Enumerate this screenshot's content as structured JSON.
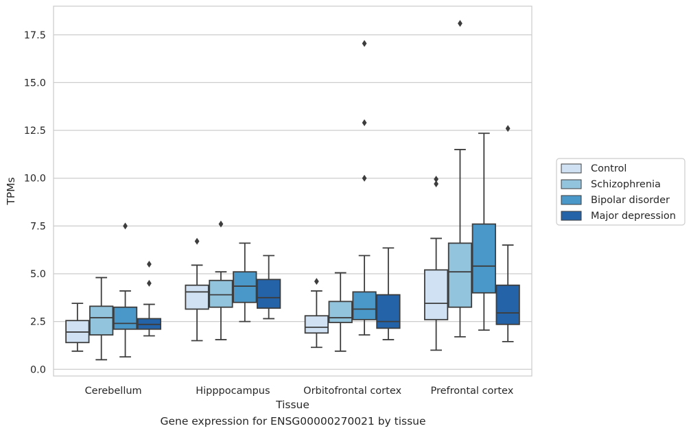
{
  "caption": "Gene expression for ENSG00000270021 by tissue",
  "chart_data": {
    "type": "boxplot",
    "title": "",
    "xlabel": "Tissue",
    "ylabel": "TPMs",
    "ylim": [
      -0.35,
      19.0
    ],
    "yticks": [
      0.0,
      2.5,
      5.0,
      7.5,
      10.0,
      12.5,
      15.0,
      17.5
    ],
    "ytick_labels": [
      "0.0",
      "2.5",
      "5.0",
      "7.5",
      "10.0",
      "12.5",
      "15.0",
      "17.5"
    ],
    "grid": "horizontal",
    "legend_position": "right",
    "categories": [
      "Cerebellum",
      "Hipppocampus",
      "Orbitofrontal cortex",
      "Prefrontal cortex"
    ],
    "series": [
      {
        "name": "Control",
        "color": "#cfe1f2",
        "boxes": [
          {
            "whislo": 0.95,
            "q1": 1.4,
            "med": 1.95,
            "q3": 2.55,
            "whishi": 3.45,
            "fliers": []
          },
          {
            "whislo": 1.5,
            "q1": 3.15,
            "med": 4.05,
            "q3": 4.4,
            "whishi": 5.45,
            "fliers": [
              6.7
            ]
          },
          {
            "whislo": 1.15,
            "q1": 1.9,
            "med": 2.2,
            "q3": 2.8,
            "whishi": 4.1,
            "fliers": [
              4.6
            ]
          },
          {
            "whislo": 1.0,
            "q1": 2.6,
            "med": 3.45,
            "q3": 5.2,
            "whishi": 6.85,
            "fliers": [
              9.7,
              9.95
            ]
          }
        ]
      },
      {
        "name": "Schizophrenia",
        "color": "#93c4de",
        "boxes": [
          {
            "whislo": 0.5,
            "q1": 1.8,
            "med": 2.7,
            "q3": 3.3,
            "whishi": 4.8,
            "fliers": []
          },
          {
            "whislo": 1.55,
            "q1": 3.25,
            "med": 3.9,
            "q3": 4.65,
            "whishi": 5.1,
            "fliers": [
              7.6
            ]
          },
          {
            "whislo": 0.95,
            "q1": 2.45,
            "med": 2.7,
            "q3": 3.55,
            "whishi": 5.05,
            "fliers": []
          },
          {
            "whislo": 1.7,
            "q1": 3.25,
            "med": 5.1,
            "q3": 6.6,
            "whishi": 11.5,
            "fliers": [
              18.1
            ]
          }
        ]
      },
      {
        "name": "Bipolar disorder",
        "color": "#4a98c9",
        "boxes": [
          {
            "whislo": 0.65,
            "q1": 2.1,
            "med": 2.4,
            "q3": 3.25,
            "whishi": 4.1,
            "fliers": [
              7.5
            ]
          },
          {
            "whislo": 2.5,
            "q1": 3.5,
            "med": 4.35,
            "q3": 5.1,
            "whishi": 6.6,
            "fliers": []
          },
          {
            "whislo": 1.8,
            "q1": 2.6,
            "med": 3.15,
            "q3": 4.05,
            "whishi": 5.95,
            "fliers": [
              10.0,
              12.9,
              17.05
            ]
          },
          {
            "whislo": 2.05,
            "q1": 4.0,
            "med": 5.4,
            "q3": 7.6,
            "whishi": 12.35,
            "fliers": []
          }
        ]
      },
      {
        "name": "Major depression",
        "color": "#2563a8",
        "boxes": [
          {
            "whislo": 1.75,
            "q1": 2.1,
            "med": 2.35,
            "q3": 2.65,
            "whishi": 3.4,
            "fliers": [
              4.5,
              5.5
            ]
          },
          {
            "whislo": 2.65,
            "q1": 3.2,
            "med": 3.75,
            "q3": 4.7,
            "whishi": 5.95,
            "fliers": []
          },
          {
            "whislo": 1.55,
            "q1": 2.15,
            "med": 2.5,
            "q3": 3.9,
            "whishi": 6.35,
            "fliers": []
          },
          {
            "whislo": 1.45,
            "q1": 2.35,
            "med": 2.95,
            "q3": 4.4,
            "whishi": 6.5,
            "fliers": [
              12.6
            ]
          }
        ]
      }
    ]
  }
}
